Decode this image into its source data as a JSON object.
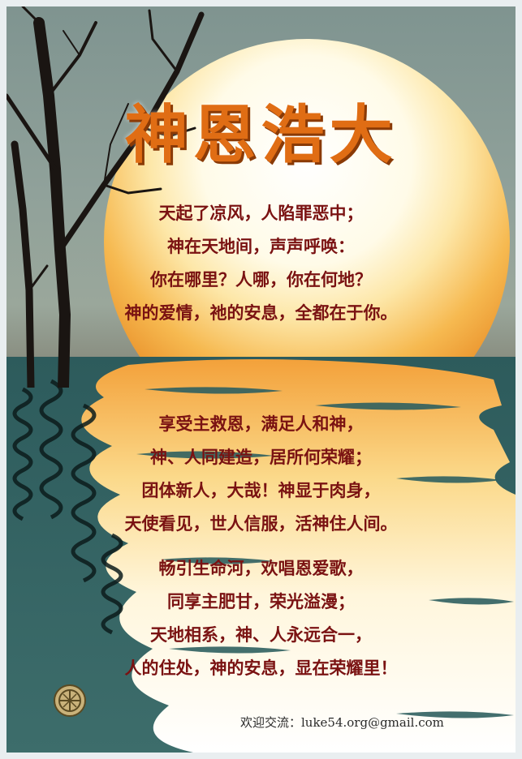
{
  "poster": {
    "title": "神恩浩大",
    "stanzas": [
      [
        "天起了凉风，人陷罪恶中；",
        "神在天地间，声声呼唤：",
        "你在哪里？人哪，你在何地？",
        "神的爱情，祂的安息，全都在于你。"
      ],
      [
        "享受主救恩，满足人和神，",
        "神、人同建造，居所何荣耀；",
        "团体新人，大哉！神显于肉身，",
        "天使看见，世人信服，活神住人间。"
      ],
      [
        "畅引生命河，欢唱恩爱歌，",
        "同享主肥甘，荣光溢漫；",
        "天地相系，神、人永远合一，",
        "人的住处，神的安息，显在荣耀里！"
      ]
    ],
    "contact": "欢迎交流：luke54.org@gmail.com"
  },
  "colors": {
    "title": "#e06d14",
    "verse_text": "#7a1212",
    "sea": "#2d5b5c",
    "sky": "#90a19a"
  },
  "icons": {
    "emblem": "round-gold-emblem-icon",
    "tree": "bare-tree-silhouette"
  }
}
